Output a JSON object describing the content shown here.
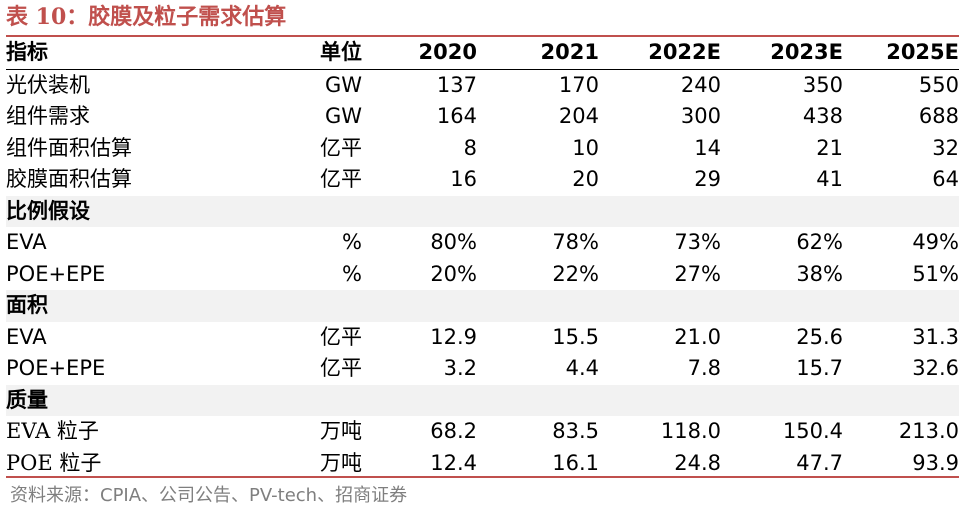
{
  "title": "表 10：胶膜及粒子需求估算",
  "header": [
    "指标",
    "单位",
    "2020",
    "2021",
    "2022E",
    "2023E",
    "2025E"
  ],
  "rows": [
    {
      "type": "data",
      "cells": [
        "光伏装机",
        "GW",
        "137",
        "170",
        "240",
        "350",
        "550"
      ]
    },
    {
      "type": "data",
      "cells": [
        "组件需求",
        "GW",
        "164",
        "204",
        "300",
        "438",
        "688"
      ]
    },
    {
      "type": "data",
      "cells": [
        "组件面积估算",
        "亿平",
        "8",
        "10",
        "14",
        "21",
        "32"
      ]
    },
    {
      "type": "data",
      "cells": [
        "胶膜面积估算",
        "亿平",
        "16",
        "20",
        "29",
        "41",
        "64"
      ]
    },
    {
      "type": "section",
      "cells": [
        "比例假设"
      ]
    },
    {
      "type": "data",
      "cells": [
        "EVA",
        "%",
        "80%",
        "78%",
        "73%",
        "62%",
        "49%"
      ]
    },
    {
      "type": "data",
      "cells": [
        "POE+EPE",
        "%",
        "20%",
        "22%",
        "27%",
        "38%",
        "51%"
      ]
    },
    {
      "type": "section",
      "cells": [
        "面积"
      ]
    },
    {
      "type": "data",
      "cells": [
        "EVA",
        "亿平",
        "12.9",
        "15.5",
        "21.0",
        "25.6",
        "31.3"
      ]
    },
    {
      "type": "data",
      "cells": [
        "POE+EPE",
        "亿平",
        "3.2",
        "4.4",
        "7.8",
        "15.7",
        "32.6"
      ]
    },
    {
      "type": "section",
      "cells": [
        "质量"
      ]
    },
    {
      "type": "data",
      "cells": [
        "EVA 粒子",
        "万吨",
        "68.2",
        "83.5",
        "118.0",
        "150.4",
        "213.0"
      ]
    },
    {
      "type": "data",
      "cells": [
        "POE 粒子",
        "万吨",
        "12.4",
        "16.1",
        "24.8",
        "47.7",
        "93.9"
      ]
    }
  ],
  "source": "资料来源：CPIA、公司公告、PV-tech、招商证券",
  "colors": {
    "accent": "#c0504d",
    "section_bg": "#f2f2f2",
    "source_text": "#7f7f7f"
  }
}
